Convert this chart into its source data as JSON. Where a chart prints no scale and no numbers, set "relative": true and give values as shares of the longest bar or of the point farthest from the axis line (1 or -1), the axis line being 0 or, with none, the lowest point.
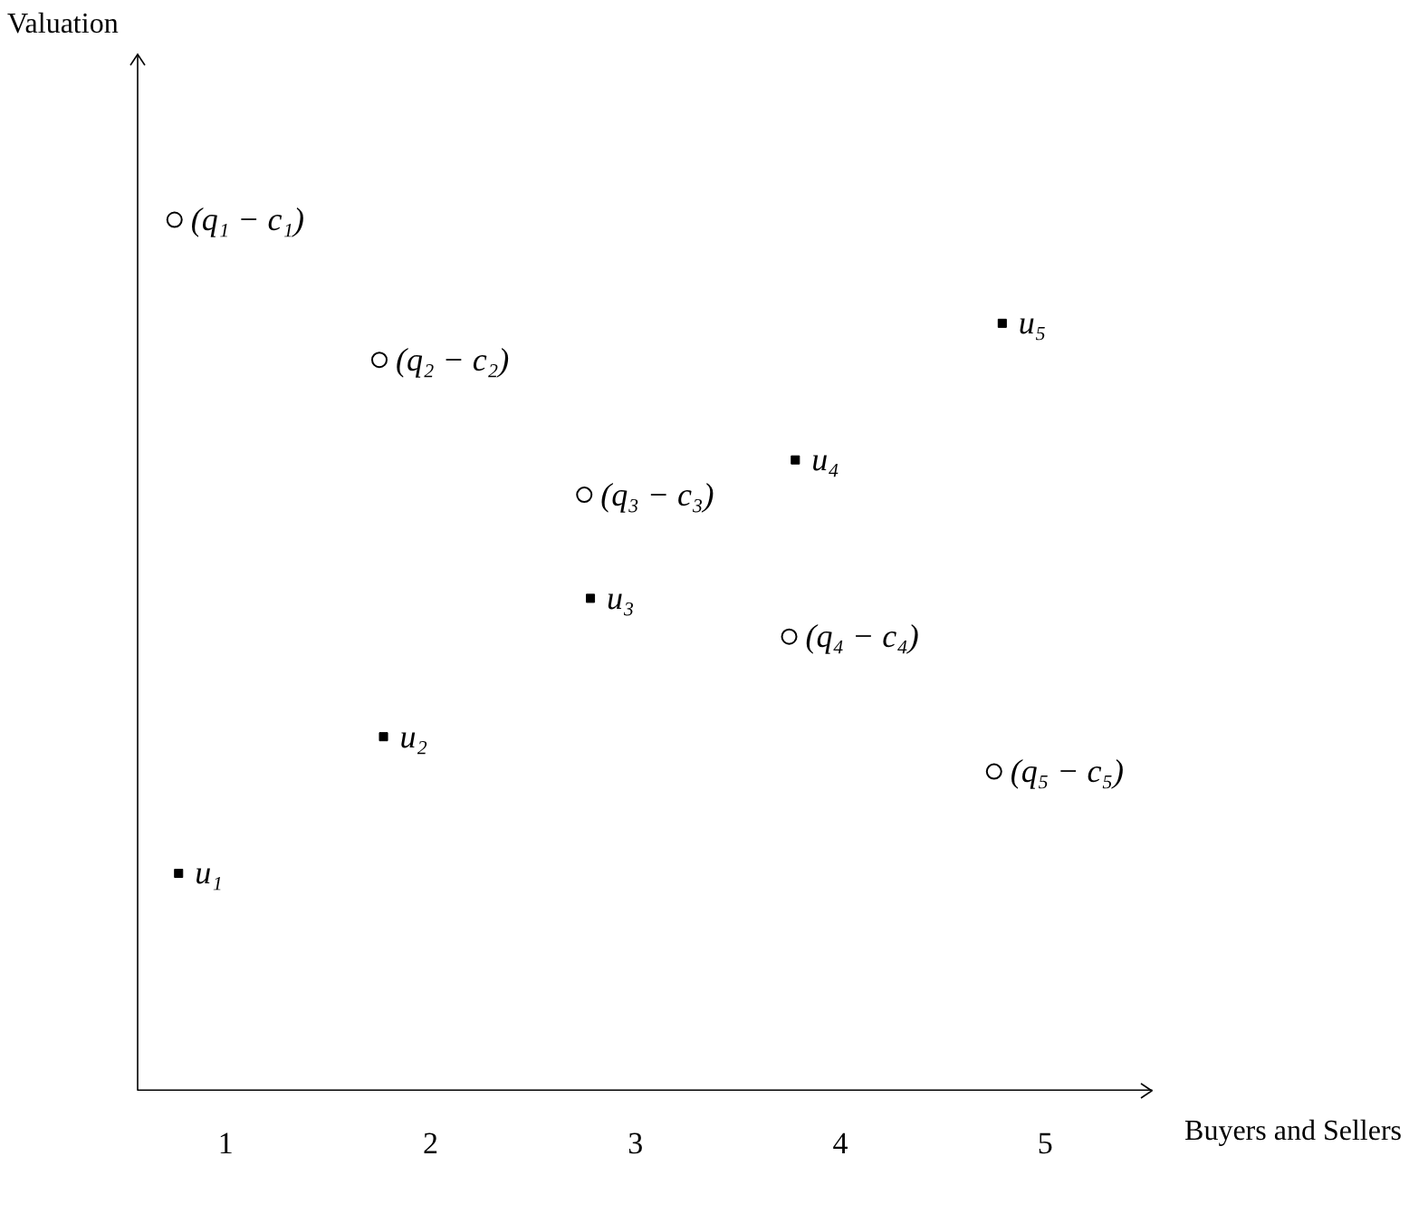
{
  "chart_data": {
    "type": "scatter",
    "xlabel": "Buyers and Sellers",
    "relative": true,
    "grid": false,
    "legend": false,
    "xlim": [
      0.57,
      5.52
    ],
    "xticks": [
      1,
      2,
      3,
      4,
      5
    ],
    "series": [
      {
        "color": "#000000",
        "marker": "circle",
        "x": [
          0.75,
          1.75,
          2.75,
          3.75,
          4.75
        ],
        "values": [
          1,
          0.839,
          0.684,
          0.521,
          0.366
        ]
      },
      {
        "color": "#000000",
        "marker": "square",
        "x": [
          0.77,
          1.77,
          2.78,
          3.78,
          4.79
        ],
        "values": [
          0.249,
          0.406,
          0.565,
          0.724,
          0.881
        ]
      }
    ],
    "annotations": [
      "Valuation",
      {
        "text": "(q₁ − c₁)",
        "x": 0.75,
        "y": 1
      },
      {
        "text": "(q₂ − c₂)",
        "x": 1.75,
        "y": 0.839
      },
      {
        "text": "(q₃ − c₃)",
        "x": 2.75,
        "y": 0.684
      },
      {
        "text": "(q₄ − c₄)",
        "x": 3.75,
        "y": 0.521
      },
      {
        "text": "(q₅ − c₅)",
        "x": 4.75,
        "y": 0.366
      },
      {
        "text": "u₁",
        "x": 0.77,
        "y": 0.249
      },
      {
        "text": "u₂",
        "x": 1.77,
        "y": 0.406
      },
      {
        "text": "u₃",
        "x": 2.78,
        "y": 0.565
      },
      {
        "text": "u₄",
        "x": 3.78,
        "y": 0.724
      },
      {
        "text": "u₅",
        "x": 4.79,
        "y": 0.881
      }
    ]
  }
}
